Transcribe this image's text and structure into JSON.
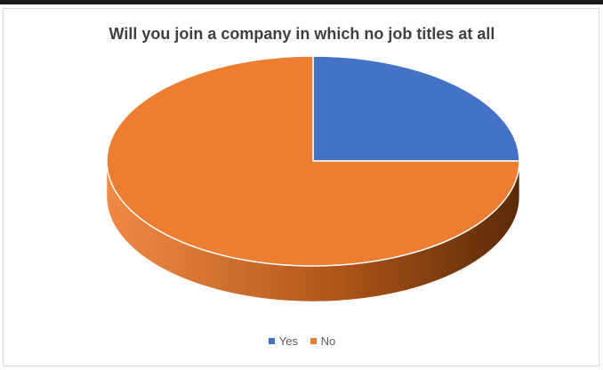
{
  "chart_data": {
    "type": "pie",
    "style": "3d",
    "title": "Will you join a company in which no job titles at all",
    "series": [
      {
        "name": "Yes",
        "value": 25,
        "color": "#4472C4",
        "side_color": "#2F5597"
      },
      {
        "name": "No",
        "value": 75,
        "color": "#ED7D31",
        "side_color": "#B0561A"
      }
    ],
    "legend_position": "bottom"
  }
}
